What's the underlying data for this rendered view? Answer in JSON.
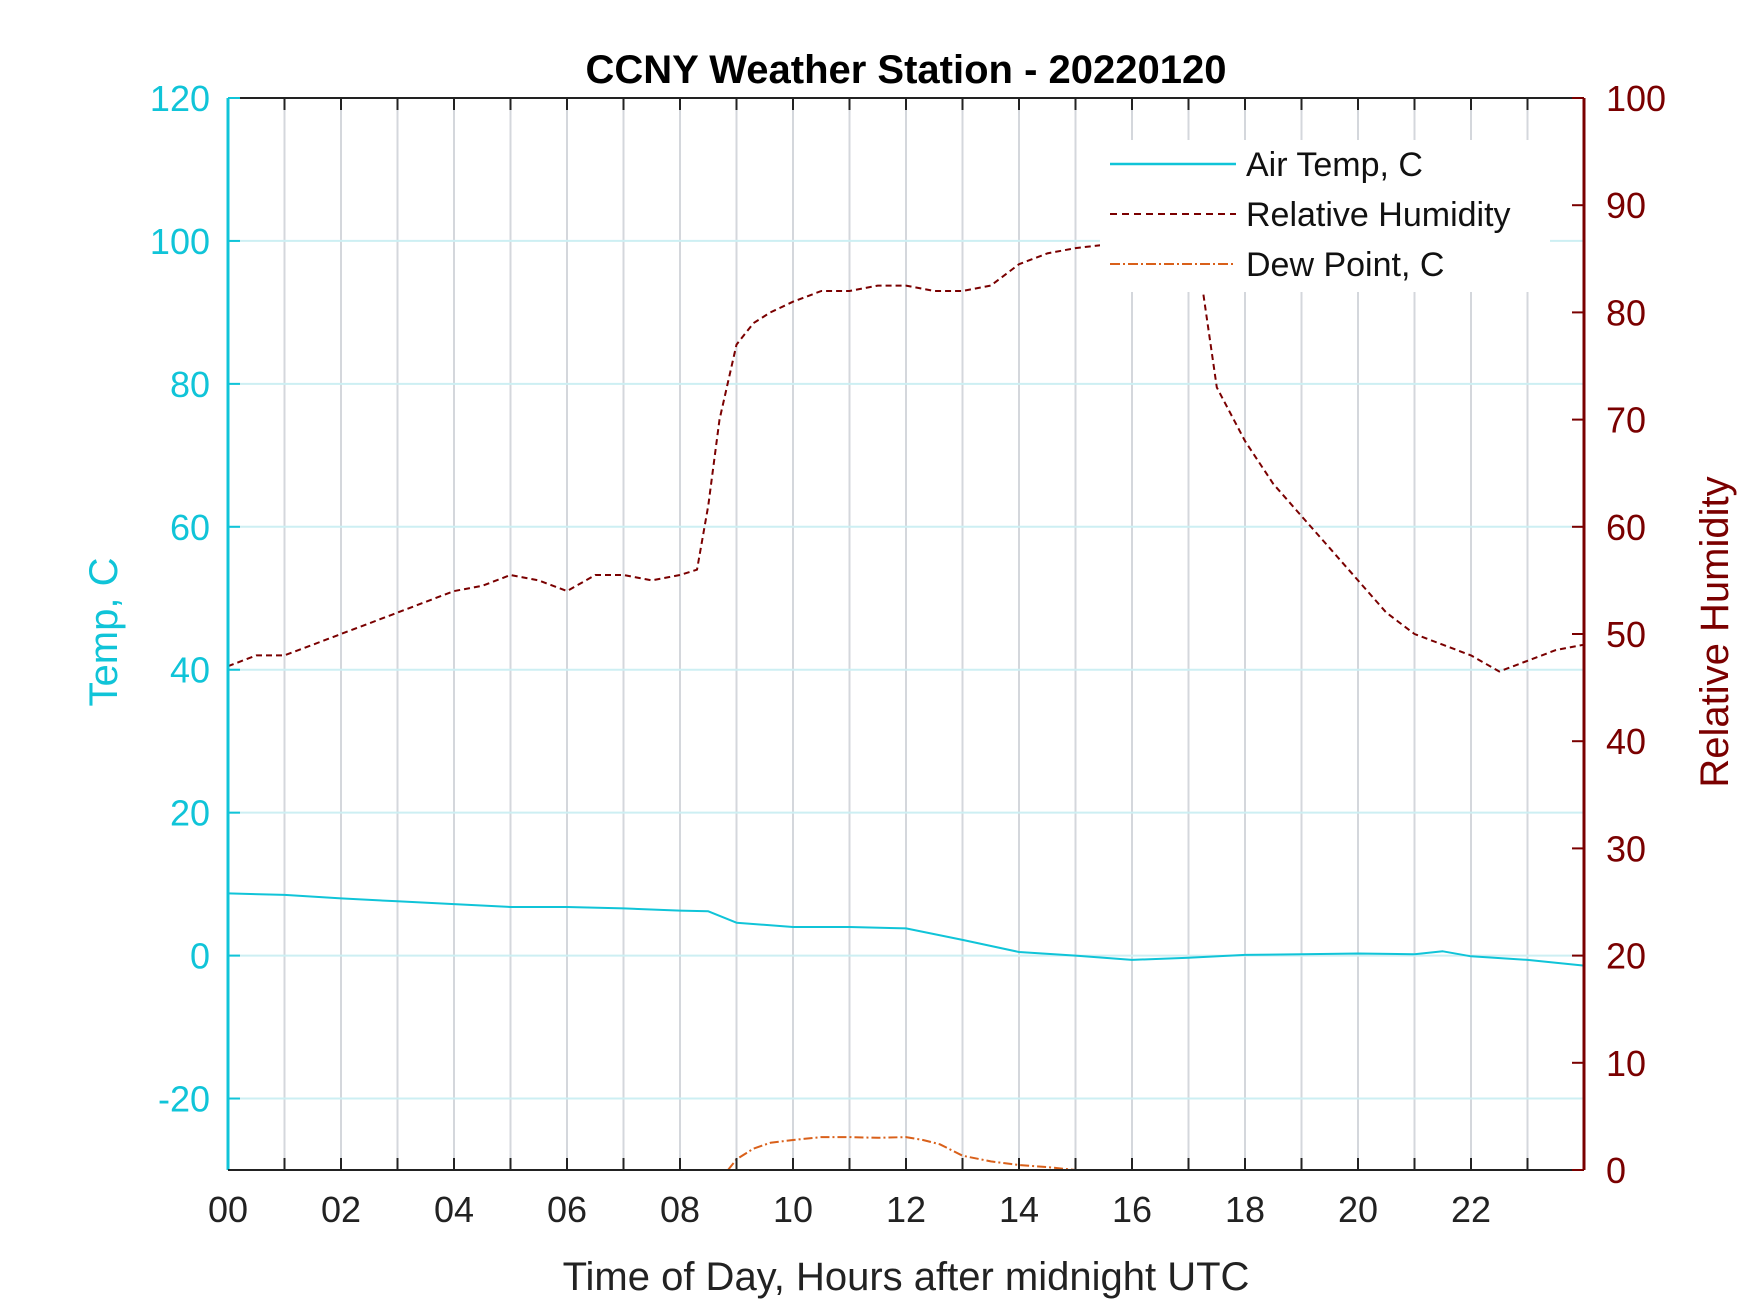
{
  "chart_data": {
    "type": "line",
    "title": "CCNY Weather Station - 20220120",
    "xlabel": "Time of Day, Hours after midnight UTC",
    "ylabel_left": "Temp, C",
    "ylabel_right": "Relative Humidity",
    "xlim": [
      0,
      24
    ],
    "ylim_left": [
      -30,
      120
    ],
    "ylim_right": [
      0,
      100
    ],
    "x_ticks": [
      0,
      2,
      4,
      6,
      8,
      10,
      12,
      14,
      16,
      18,
      20,
      22
    ],
    "x_tick_labels": [
      "00",
      "02",
      "04",
      "06",
      "08",
      "10",
      "12",
      "14",
      "16",
      "18",
      "20",
      "22"
    ],
    "y_left_ticks": [
      -20,
      0,
      20,
      40,
      60,
      80,
      100,
      120
    ],
    "y_left_tick_labels": [
      "-20",
      "0",
      "20",
      "40",
      "60",
      "80",
      "100",
      "120"
    ],
    "y_right_ticks": [
      0,
      10,
      20,
      30,
      40,
      50,
      60,
      70,
      80,
      90,
      100
    ],
    "y_right_tick_labels": [
      "0",
      "10",
      "20",
      "30",
      "40",
      "50",
      "60",
      "70",
      "80",
      "90",
      "100"
    ],
    "grid": true,
    "legend_position": "top-right",
    "colors": {
      "air_temp": "#10c4d8",
      "relative_humidity": "#7a0000",
      "dew_point": "#d9601a"
    },
    "series": [
      {
        "name": "Air Temp, C",
        "axis": "left",
        "style": "solid",
        "x": [
          0,
          1,
          2,
          3,
          4,
          5,
          6,
          7,
          8,
          8.5,
          9,
          10,
          11,
          12,
          13,
          14,
          15,
          16,
          17,
          18,
          19,
          20,
          21,
          21.5,
          22,
          23,
          24
        ],
        "values": [
          8.7,
          8.5,
          8.0,
          7.6,
          7.2,
          6.8,
          6.8,
          6.6,
          6.3,
          6.2,
          4.6,
          4.0,
          4.0,
          3.8,
          2.2,
          0.5,
          0.0,
          -0.6,
          -0.3,
          0.1,
          0.2,
          0.3,
          0.2,
          0.6,
          -0.1,
          -0.6,
          -1.4
        ]
      },
      {
        "name": "Relative Humidity",
        "axis": "right",
        "style": "dashed",
        "x": [
          0,
          0.5,
          1,
          1.5,
          2,
          2.5,
          3,
          3.5,
          4,
          4.5,
          5,
          5.5,
          6,
          6.5,
          7,
          7.5,
          8,
          8.3,
          8.5,
          8.7,
          9,
          9.3,
          9.6,
          10,
          10.5,
          11,
          11.5,
          12,
          12.5,
          13,
          13.5,
          14,
          14.5,
          15,
          15.5,
          16,
          16.5,
          17,
          17.2,
          17.5,
          18,
          18.5,
          19,
          19.5,
          20,
          20.5,
          21,
          21.5,
          22,
          22.5,
          23,
          23.5,
          24
        ],
        "values": [
          47,
          48,
          48,
          49,
          50,
          51,
          52,
          53,
          54,
          54.5,
          55.5,
          55,
          54,
          55.5,
          55.5,
          55,
          55.5,
          56,
          62,
          70,
          77,
          79,
          80,
          81,
          82,
          82,
          82.5,
          82.5,
          82,
          82,
          82.5,
          84.5,
          85.5,
          86,
          86.3,
          86.5,
          86,
          85.5,
          84,
          73,
          68,
          64,
          61,
          58,
          55,
          52,
          50,
          49,
          48,
          46.5,
          47.5,
          48.5,
          49
        ]
      },
      {
        "name": "Dew Point, C",
        "axis": "left",
        "style": "dash-dot",
        "x": [
          8.85,
          9.0,
          9.3,
          9.6,
          10.0,
          10.5,
          11.0,
          11.5,
          12.0,
          12.3,
          12.6,
          13.0,
          13.5,
          14.0,
          14.5,
          15.0
        ],
        "values": [
          -30,
          -28.5,
          -27.0,
          -26.2,
          -25.8,
          -25.4,
          -25.4,
          -25.5,
          -25.4,
          -25.8,
          -26.4,
          -28.0,
          -28.8,
          -29.3,
          -29.6,
          -30
        ]
      }
    ],
    "legend": [
      "Air Temp, C",
      "Relative Humidity",
      "Dew Point, C"
    ]
  }
}
